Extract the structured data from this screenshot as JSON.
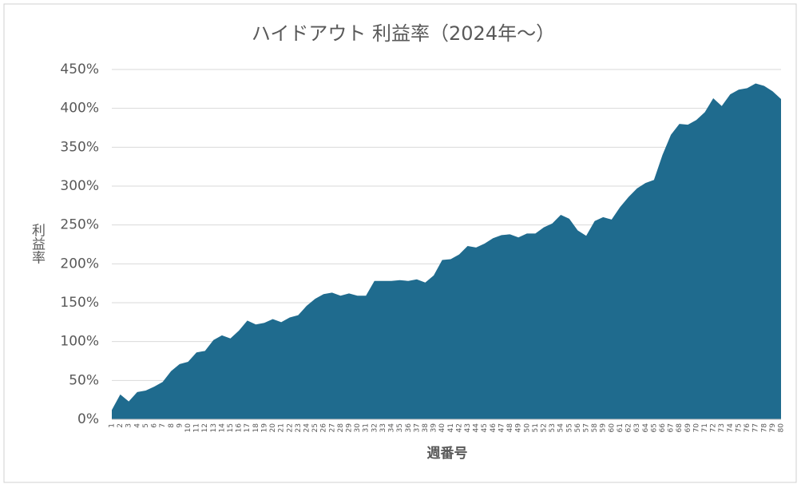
{
  "chart_data": {
    "type": "area",
    "title": "ハイドアウト 利益率（2024年～）",
    "x_label": "週番号",
    "y_label": "利益率",
    "categories": [
      "1",
      "2",
      "3",
      "4",
      "5",
      "6",
      "7",
      "8",
      "9",
      "10",
      "11",
      "12",
      "13",
      "14",
      "15",
      "16",
      "17",
      "18",
      "19",
      "20",
      "21",
      "22",
      "23",
      "24",
      "25",
      "26",
      "27",
      "28",
      "29",
      "30",
      "31",
      "32",
      "33",
      "34",
      "35",
      "36",
      "37",
      "38",
      "39",
      "40",
      "41",
      "42",
      "43",
      "44",
      "45",
      "46",
      "47",
      "48",
      "49",
      "50",
      "51",
      "52",
      "53",
      "54",
      "55",
      "56",
      "57",
      "58",
      "59",
      "60",
      "61",
      "62",
      "63",
      "64",
      "65",
      "66",
      "67",
      "68",
      "69",
      "70",
      "71",
      "72",
      "73",
      "74",
      "75",
      "76",
      "77",
      "78",
      "79",
      "80"
    ],
    "values": [
      12,
      32,
      23,
      35,
      37,
      42,
      48,
      62,
      71,
      74,
      86,
      88,
      102,
      108,
      104,
      114,
      127,
      122,
      124,
      129,
      125,
      131,
      134,
      146,
      155,
      161,
      163,
      159,
      162,
      159,
      159,
      178,
      178,
      178,
      179,
      178,
      180,
      176,
      185,
      205,
      206,
      212,
      223,
      221,
      226,
      233,
      237,
      238,
      234,
      239,
      239,
      247,
      252,
      263,
      258,
      243,
      236,
      255,
      260,
      257,
      273,
      286,
      297,
      304,
      308,
      340,
      366,
      380,
      379,
      385,
      395,
      413,
      403,
      418,
      424,
      426,
      432,
      429,
      422,
      412
    ],
    "color": "#1f6b8e",
    "ylim": [
      0,
      450
    ],
    "yticks": [
      {
        "value": 0,
        "label": "0%"
      },
      {
        "value": 50,
        "label": "50%"
      },
      {
        "value": 100,
        "label": "100%"
      },
      {
        "value": 150,
        "label": "150%"
      },
      {
        "value": 200,
        "label": "200%"
      },
      {
        "value": 250,
        "label": "250%"
      },
      {
        "value": 300,
        "label": "300%"
      },
      {
        "value": 350,
        "label": "350%"
      },
      {
        "value": 400,
        "label": "400%"
      },
      {
        "value": 450,
        "label": "450%"
      }
    ],
    "grid": true
  }
}
